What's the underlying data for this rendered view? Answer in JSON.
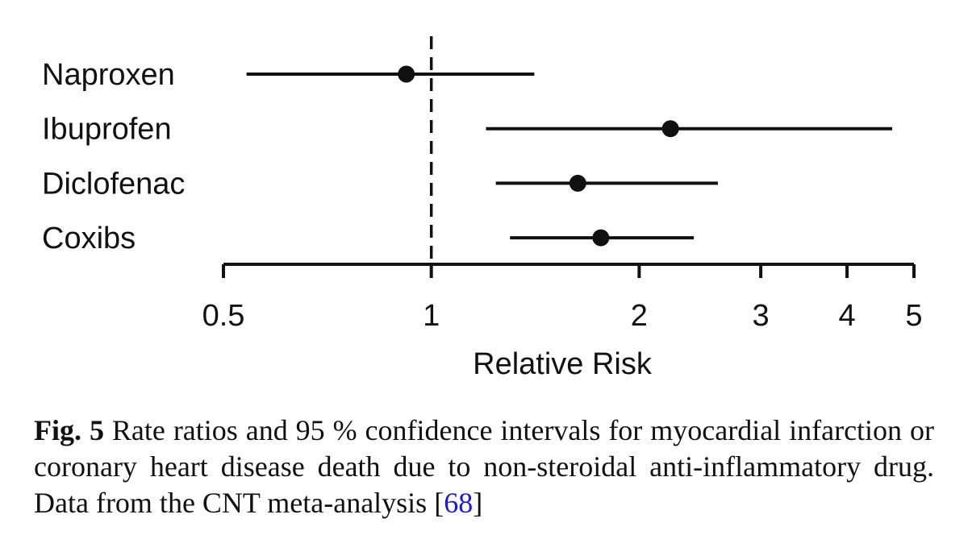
{
  "chart_data": {
    "type": "forest",
    "xlabel": "Relative Risk",
    "xscale": "log",
    "xlim": [
      0.5,
      5.0
    ],
    "xticks": [
      0.5,
      1,
      2,
      3,
      4,
      5
    ],
    "xtick_labels": [
      "0.5",
      "1",
      "2",
      "3",
      "4",
      "5"
    ],
    "reference_line": 1,
    "categories": [
      "Naproxen",
      "Ibuprofen",
      "Diclofenac",
      "Coxibs"
    ],
    "estimates": [
      0.92,
      2.22,
      1.63,
      1.76
    ],
    "ci_lower": [
      0.54,
      1.2,
      1.24,
      1.3
    ],
    "ci_upper": [
      1.41,
      4.65,
      2.6,
      2.4
    ]
  },
  "caption": {
    "label": "Fig. 5",
    "text": " Rate ratios and 95 % confidence intervals for myocardial infarction or coronary heart disease death due to non-steroidal anti-inflammatory drug. Data from the CNT meta-analysis ",
    "ref_open": "[",
    "ref": "68",
    "ref_close": "]"
  },
  "colors": {
    "ink": "#111111",
    "link": "#1a1ad6"
  }
}
